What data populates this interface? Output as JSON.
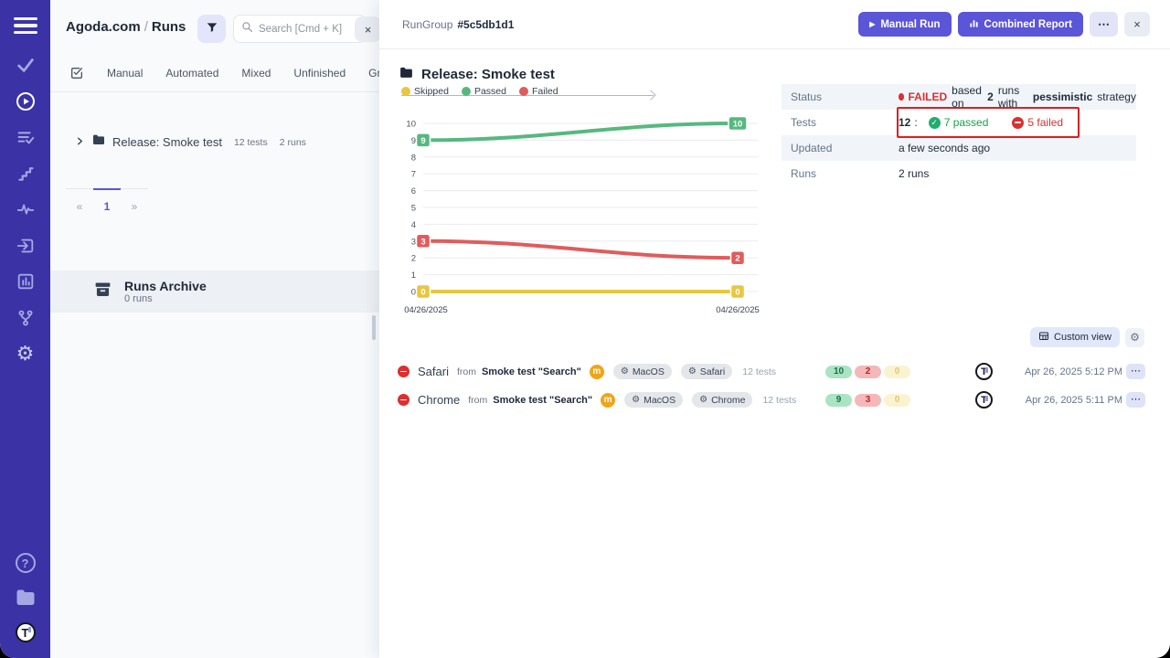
{
  "colors": {
    "sidebar_bg": "#3a32a5",
    "accent_indigo": "#5b55d8",
    "passed_green": "#57b87f",
    "failed_red": "#e05c5c",
    "skipped_yellow": "#e8c63f",
    "status_failed_text": "#dc2f2f",
    "annotation_red": "#dc1f1f",
    "mode_badge_orange": "#f0a418"
  },
  "icons": {
    "gear": "⚙",
    "help": "?",
    "play": "▶",
    "chevron_right": "›"
  },
  "brand": {
    "avatar_initial": "T"
  },
  "left_panel": {
    "breadcrumb": {
      "project": "Agoda.com",
      "separator": "/",
      "section": "Runs"
    },
    "search_placeholder": "Search [Cmd + K]",
    "close_label": "×",
    "tabs": [
      {
        "label": "Manual"
      },
      {
        "label": "Automated"
      },
      {
        "label": "Mixed"
      },
      {
        "label": "Unfinished"
      },
      {
        "label": "Groups"
      }
    ],
    "tree_item": {
      "name": "Release: Smoke test",
      "tests_count": "12 tests",
      "runs_count": "2 runs"
    },
    "pagination": {
      "prev": "«",
      "current": "1",
      "next": "»"
    },
    "archive": {
      "title": "Runs Archive",
      "count": "0 runs"
    }
  },
  "detail": {
    "header": {
      "entity": "RunGroup",
      "id": "#5c5db1d1"
    },
    "actions": {
      "manual_run": "Manual Run",
      "combined_report": "Combined Report",
      "more": "⋯",
      "close": "×"
    },
    "title": "Release: Smoke test",
    "info": {
      "status": {
        "label": "Status",
        "badge": "FAILED",
        "t1": "based on",
        "runs_count": "2",
        "t2": "runs with",
        "strategy": "pessimistic",
        "t3": "strategy"
      },
      "tests": {
        "label": "Tests",
        "total": "12",
        "colon": ":",
        "passed": "7 passed",
        "failed": "5 failed"
      },
      "updated": {
        "label": "Updated",
        "value": "a few seconds ago"
      },
      "runs": {
        "label": "Runs",
        "value": "2 runs"
      }
    },
    "custom_view": {
      "label": "Custom view"
    },
    "runs": [
      {
        "name": "Safari",
        "from": "from",
        "source": "Smoke test \"Search\"",
        "mode": "m",
        "env_os": "MacOS",
        "env_browser": "Safari",
        "tests": "12 tests",
        "passed": "10",
        "failed": "2",
        "skipped": "0",
        "time": "Apr 26, 2025 5:12 PM",
        "more": "⋯"
      },
      {
        "name": "Chrome",
        "from": "from",
        "source": "Smoke test \"Search\"",
        "mode": "m",
        "env_os": "MacOS",
        "env_browser": "Chrome",
        "tests": "12 tests",
        "passed": "9",
        "failed": "3",
        "skipped": "0",
        "time": "Apr 26, 2025 5:11 PM",
        "more": "⋯"
      }
    ]
  },
  "chart_data": {
    "type": "line",
    "title": "",
    "x": [
      "04/26/2025",
      "04/26/2025"
    ],
    "series": [
      {
        "name": "Skipped",
        "color": "#e8c63f",
        "values": [
          0,
          0
        ]
      },
      {
        "name": "Passed",
        "color": "#57b87f",
        "values": [
          9,
          10
        ]
      },
      {
        "name": "Failed",
        "color": "#e05c5c",
        "values": [
          3,
          2
        ]
      }
    ],
    "ylim": [
      0,
      10
    ],
    "yticks": [
      10,
      9,
      8,
      7,
      6,
      5,
      4,
      3,
      2,
      1,
      0
    ],
    "grid": true,
    "legend_position": "top"
  }
}
